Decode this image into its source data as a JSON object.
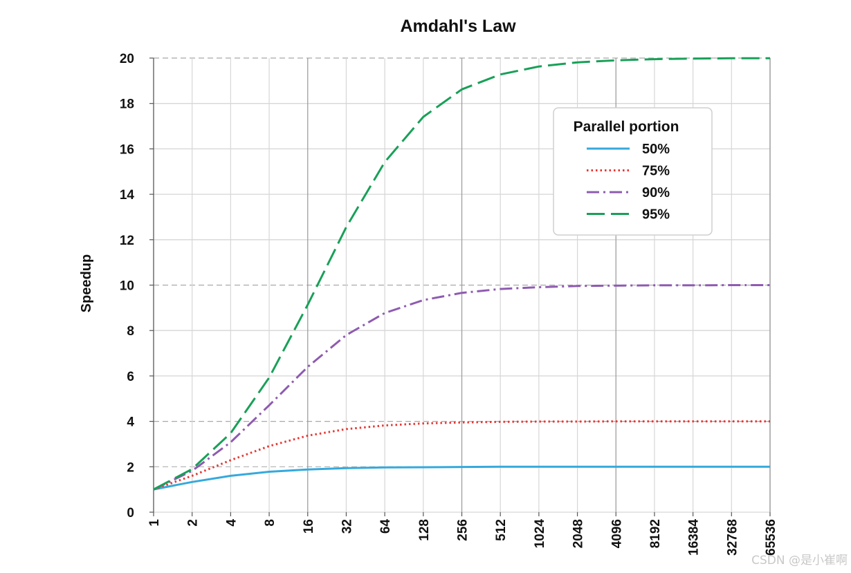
{
  "chart_data": {
    "type": "line",
    "title": "Amdahl's Law",
    "xlabel": "",
    "ylabel": "Speedup",
    "x_scale": "log2",
    "x": [
      1,
      2,
      4,
      8,
      16,
      32,
      64,
      128,
      256,
      512,
      1024,
      2048,
      4096,
      8192,
      16384,
      32768,
      65536
    ],
    "x_tick_labels": [
      "1",
      "2",
      "4",
      "8",
      "16",
      "32",
      "64",
      "128",
      "256",
      "512",
      "1024",
      "2048",
      "4096",
      "8192",
      "16384",
      "32768",
      "65536"
    ],
    "ylim": [
      0,
      20
    ],
    "y_ticks": [
      0,
      2,
      4,
      6,
      8,
      10,
      12,
      14,
      16,
      18,
      20
    ],
    "grid": true,
    "legend": {
      "title": "Parallel portion",
      "placement": "top-right"
    },
    "series": [
      {
        "name": "50%",
        "color": "#35a9dc",
        "style": "solid",
        "values": [
          1.0,
          1.33,
          1.6,
          1.78,
          1.88,
          1.94,
          1.97,
          1.98,
          1.99,
          2.0,
          2.0,
          2.0,
          2.0,
          2.0,
          2.0,
          2.0,
          2.0
        ]
      },
      {
        "name": "75%",
        "color": "#e53935",
        "style": "dotted",
        "values": [
          1.0,
          1.6,
          2.29,
          2.91,
          3.37,
          3.66,
          3.82,
          3.91,
          3.95,
          3.98,
          3.99,
          3.99,
          4.0,
          4.0,
          4.0,
          4.0,
          4.0
        ]
      },
      {
        "name": "90%",
        "color": "#8e5bb0",
        "style": "dashdot",
        "values": [
          1.0,
          1.82,
          3.08,
          4.71,
          6.4,
          7.8,
          8.77,
          9.34,
          9.66,
          9.83,
          9.91,
          9.96,
          9.98,
          9.99,
          9.99,
          10.0,
          10.0
        ]
      },
      {
        "name": "95%",
        "color": "#18a058",
        "style": "dashed",
        "values": [
          1.0,
          1.9,
          3.48,
          5.93,
          9.14,
          12.55,
          15.42,
          17.41,
          18.62,
          19.28,
          19.63,
          19.81,
          19.9,
          19.95,
          19.98,
          19.99,
          19.99
        ]
      }
    ]
  },
  "watermark": "CSDN @是小崔啊"
}
